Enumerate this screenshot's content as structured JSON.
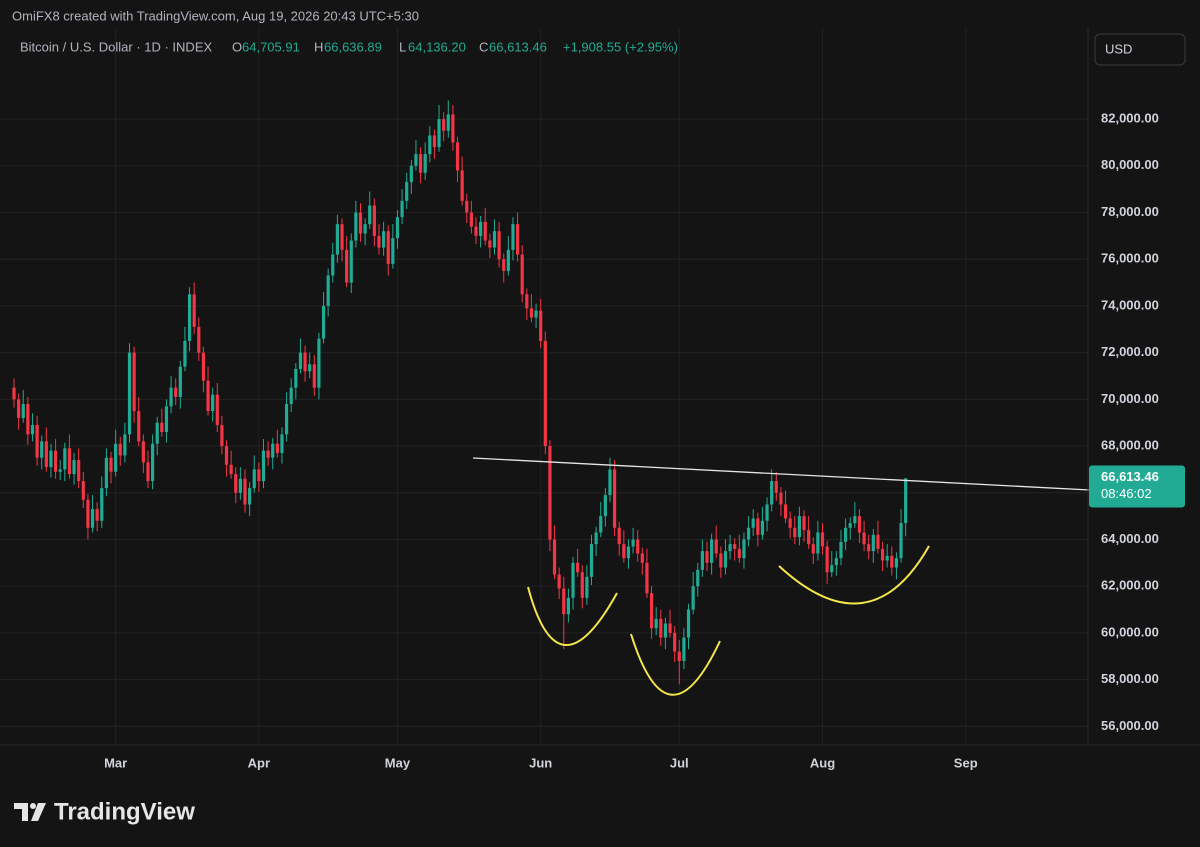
{
  "header": {
    "credit": "OmiFX8 created with TradingView.com, Aug 19, 2026 20:43 UTC+5:30",
    "symbol": "Bitcoin / U.S. Dollar · 1D · INDEX",
    "open_key": "O",
    "open_text": "64,705.91",
    "high_key": "H",
    "high_text": "66,636.89",
    "low_key": "L",
    "low_text": "64,136.20",
    "close_key": "C",
    "close_text": "66,613.46",
    "change_text": "+1,908.55 (+2.95%)",
    "currency": "USD"
  },
  "logo": "TradingView",
  "chart_data": {
    "type": "candlestick",
    "up_color": "#22ab94",
    "down_color": "#f23645",
    "grid": true,
    "last_price_label": "66,613.46",
    "countdown": "08:46:02",
    "ylim": [
      55200,
      85900
    ],
    "yticks": [
      {
        "value": 56000,
        "label": "56,000.00"
      },
      {
        "value": 58000,
        "label": "58,000.00"
      },
      {
        "value": 60000,
        "label": "60,000.00"
      },
      {
        "value": 62000,
        "label": "62,000.00"
      },
      {
        "value": 64000,
        "label": "64,000.00"
      },
      {
        "value": 66000,
        "label": "66,000.00"
      },
      {
        "value": 68000,
        "label": "68,000.00"
      },
      {
        "value": 70000,
        "label": "70,000.00"
      },
      {
        "value": 72000,
        "label": "72,000.00"
      },
      {
        "value": 74000,
        "label": "74,000.00"
      },
      {
        "value": 76000,
        "label": "76,000.00"
      },
      {
        "value": 78000,
        "label": "78,000.00"
      },
      {
        "value": 80000,
        "label": "80,000.00"
      },
      {
        "value": 82000,
        "label": "82,000.00"
      }
    ],
    "categories": [
      null,
      null,
      null,
      null,
      null,
      null,
      null,
      null,
      null,
      null,
      null,
      null,
      null,
      null,
      null,
      null,
      null,
      null,
      null,
      null,
      null,
      null,
      "Mar",
      null,
      null,
      null,
      null,
      null,
      null,
      null,
      null,
      null,
      null,
      null,
      null,
      null,
      null,
      null,
      null,
      null,
      null,
      null,
      null,
      null,
      null,
      null,
      null,
      null,
      null,
      null,
      null,
      null,
      null,
      "Apr",
      null,
      null,
      null,
      null,
      null,
      null,
      null,
      null,
      null,
      null,
      null,
      null,
      null,
      null,
      null,
      null,
      null,
      null,
      null,
      null,
      null,
      null,
      null,
      null,
      null,
      null,
      null,
      null,
      null,
      "May",
      null,
      null,
      null,
      null,
      null,
      null,
      null,
      null,
      null,
      null,
      null,
      null,
      null,
      null,
      null,
      null,
      null,
      null,
      null,
      null,
      null,
      null,
      null,
      null,
      null,
      null,
      null,
      null,
      null,
      null,
      "Jun",
      null,
      null,
      null,
      null,
      null,
      null,
      null,
      null,
      null,
      null,
      null,
      null,
      null,
      null,
      null,
      null,
      null,
      null,
      null,
      null,
      null,
      null,
      null,
      null,
      null,
      null,
      null,
      null,
      null,
      "Jul",
      null,
      null,
      null,
      null,
      null,
      null,
      null,
      null,
      null,
      null,
      null,
      null,
      null,
      null,
      null,
      null,
      null,
      null,
      null,
      null,
      null,
      null,
      null,
      null,
      null,
      null,
      null,
      null,
      null,
      null,
      "Aug",
      null,
      null,
      null,
      null,
      null,
      null,
      null,
      null,
      null,
      null,
      null,
      null,
      null,
      null,
      null,
      null,
      null,
      null,
      null,
      null,
      null,
      null,
      null,
      null,
      null,
      null,
      null,
      null,
      null,
      null,
      "Sep"
    ],
    "open": [
      70500,
      70000,
      69200,
      69800,
      68500,
      68900,
      67500,
      68200,
      67100,
      67800,
      66900,
      67000,
      67900,
      66800,
      67400,
      66500,
      65700,
      64500,
      65300,
      64800,
      66200,
      67500,
      66900,
      68100,
      67600,
      68500,
      72000,
      69500,
      68200,
      67300,
      66500,
      68100,
      69000,
      68600,
      69700,
      70500,
      70100,
      71400,
      72500,
      74500,
      73100,
      72000,
      70800,
      69500,
      70200,
      68900,
      68000,
      67200,
      66800,
      66000,
      66600,
      65500,
      66200,
      67000,
      66500,
      67800,
      67500,
      68100,
      67700,
      68500,
      69800,
      70500,
      71300,
      72000,
      71200,
      71500,
      70500,
      72600,
      74000,
      75300,
      76200,
      77500,
      76400,
      75000,
      76800,
      78000,
      77100,
      77500,
      78300,
      77000,
      76500,
      77200,
      75800,
      76900,
      77800,
      78500,
      79300,
      80000,
      80500,
      79700,
      80500,
      81300,
      80800,
      82000,
      81500,
      82200,
      81000,
      79800,
      78500,
      78000,
      77400,
      77000,
      77600,
      76800,
      76500,
      77200,
      76000,
      75500,
      76400,
      77500,
      76200,
      74500,
      73900,
      73500,
      73800,
      72500,
      68000,
      64000,
      62500,
      61900,
      60800,
      61500,
      63000,
      62600,
      61500,
      62400,
      63800,
      64300,
      65000,
      65900,
      67000,
      64500,
      63800,
      63200,
      63700,
      64000,
      63400,
      63000,
      61700,
      60200,
      60600,
      59800,
      60400,
      60000,
      59200,
      58800,
      59800,
      61000,
      62000,
      62700,
      63500,
      63000,
      64000,
      63400,
      62800,
      63500,
      63800,
      63600,
      63200,
      64000,
      64500,
      64900,
      64200,
      64800,
      65500,
      66500,
      66000,
      65500,
      64900,
      64500,
      64100,
      65000,
      64400,
      63800,
      63400,
      64300,
      63700,
      62600,
      62900,
      63200,
      63900,
      64500,
      64700,
      65000,
      64300,
      63800,
      63500,
      64200,
      63600,
      63100,
      63300,
      62800,
      63200,
      64705.91,
      null,
      null,
      null,
      null,
      null,
      null,
      null,
      null,
      null,
      null,
      null,
      null,
      null
    ],
    "high": [
      70900,
      70250,
      70400,
      70100,
      69400,
      69300,
      68450,
      68800,
      68100,
      68300,
      67400,
      68150,
      68500,
      67700,
      67900,
      66900,
      65950,
      65900,
      65600,
      66700,
      67900,
      67750,
      68700,
      68400,
      69000,
      72400,
      72250,
      70100,
      68500,
      67800,
      68500,
      69250,
      69600,
      70000,
      71000,
      70900,
      71650,
      73100,
      74800,
      75000,
      73500,
      72250,
      71400,
      70500,
      70700,
      69300,
      68250,
      67800,
      67100,
      67100,
      67000,
      66450,
      67600,
      67300,
      68300,
      68200,
      68350,
      68700,
      68800,
      70300,
      70900,
      71550,
      72600,
      72300,
      72000,
      71900,
      72850,
      74600,
      75600,
      76700,
      77900,
      77750,
      77000,
      77100,
      78500,
      78400,
      77750,
      78900,
      78600,
      77500,
      77600,
      77450,
      77500,
      78100,
      79000,
      79700,
      80250,
      81100,
      80800,
      81000,
      81700,
      81550,
      82600,
      82300,
      82800,
      82600,
      81250,
      80400,
      78800,
      78500,
      77800,
      77850,
      78200,
      77100,
      77700,
      77600,
      76250,
      77000,
      77800,
      78000,
      76600,
      74750,
      74500,
      74100,
      74300,
      72900,
      68250,
      64600,
      62800,
      62400,
      61900,
      63250,
      63600,
      62900,
      62900,
      64200,
      64550,
      65600,
      66200,
      67500,
      67400,
      64750,
      64400,
      64000,
      64500,
      64400,
      63650,
      63600,
      62000,
      61100,
      61000,
      60650,
      61000,
      60300,
      59700,
      60200,
      61250,
      62600,
      63000,
      64000,
      63900,
      64250,
      64600,
      63700,
      64000,
      64200,
      64050,
      64200,
      64300,
      65000,
      65300,
      65150,
      65400,
      65800,
      67000,
      66900,
      66250,
      66100,
      65200,
      65000,
      65400,
      65250,
      65000,
      64100,
      64800,
      64700,
      63950,
      63500,
      63500,
      64400,
      64900,
      64950,
      65600,
      65300,
      64800,
      64200,
      64450,
      64800,
      63900,
      63800,
      63700,
      63450,
      65300,
      66636.89,
      null,
      null,
      null,
      null,
      null,
      null,
      null,
      null,
      null,
      null,
      null,
      null,
      null
    ],
    "low": [
      69650,
      68700,
      69000,
      68050,
      68200,
      67150,
      67000,
      66900,
      66650,
      66600,
      66550,
      66500,
      66600,
      66350,
      66200,
      65350,
      64000,
      64300,
      64350,
      64500,
      65850,
      66400,
      66700,
      67150,
      67300,
      68150,
      69000,
      68000,
      66850,
      66200,
      66150,
      67600,
      68400,
      68150,
      69400,
      69750,
      69600,
      71200,
      72050,
      72800,
      71650,
      70300,
      69300,
      69050,
      68600,
      67650,
      66700,
      66600,
      65550,
      65700,
      65150,
      65000,
      66000,
      66050,
      66200,
      67150,
      67000,
      67500,
      67250,
      68200,
      69450,
      70000,
      71100,
      70750,
      70900,
      70150,
      70000,
      72400,
      73550,
      75000,
      75850,
      75900,
      74800,
      74550,
      76500,
      76750,
      76600,
      77300,
      76550,
      76200,
      76150,
      75300,
      75600,
      76450,
      77500,
      78150,
      78800,
      79800,
      79250,
      79400,
      80150,
      80300,
      80600,
      81050,
      81200,
      80650,
      79300,
      78300,
      77550,
      77100,
      76650,
      76500,
      76600,
      76050,
      76200,
      75650,
      75000,
      75300,
      75950,
      75900,
      74150,
      73400,
      73300,
      73050,
      72200,
      67650,
      63500,
      62300,
      61450,
      59300,
      60450,
      61000,
      62400,
      61050,
      61200,
      62050,
      63300,
      64100,
      64550,
      65600,
      64150,
      63300,
      63000,
      62750,
      63400,
      63050,
      62500,
      61500,
      59750,
      59900,
      59450,
      59300,
      59800,
      58750,
      57800,
      58450,
      59300,
      60800,
      61550,
      62400,
      62650,
      62500,
      63200,
      62350,
      62500,
      63150,
      63100,
      63000,
      62750,
      63700,
      64150,
      63700,
      64000,
      64350,
      65200,
      65650,
      65000,
      64700,
      64050,
      63800,
      63750,
      63900,
      63600,
      62950,
      63100,
      63350,
      62100,
      62400,
      62450,
      62900,
      63550,
      64000,
      64500,
      63850,
      63500,
      63150,
      63000,
      63400,
      62650,
      62800,
      62450,
      62300,
      63000,
      64136.2,
      null,
      null,
      null,
      null,
      null,
      null,
      null,
      null,
      null,
      null,
      null,
      null,
      null
    ],
    "close": [
      70000,
      69200,
      69800,
      68500,
      68900,
      67500,
      68200,
      67100,
      67800,
      66900,
      67000,
      67900,
      66800,
      67400,
      66500,
      65700,
      64500,
      65300,
      64800,
      66200,
      67500,
      66900,
      68100,
      67600,
      68500,
      72000,
      69500,
      68200,
      67300,
      66500,
      68100,
      69000,
      68600,
      69700,
      70500,
      70100,
      71400,
      72500,
      74500,
      73100,
      72000,
      70800,
      69500,
      70200,
      68900,
      68000,
      67200,
      66800,
      66000,
      66600,
      65500,
      66200,
      67000,
      66500,
      67800,
      67500,
      68100,
      67700,
      68500,
      69800,
      70500,
      71300,
      72000,
      71200,
      71500,
      70500,
      72600,
      74000,
      75300,
      76200,
      77500,
      76400,
      75000,
      76800,
      78000,
      77100,
      77500,
      78300,
      77000,
      76500,
      77200,
      75800,
      76900,
      77800,
      78500,
      79300,
      80000,
      80500,
      79700,
      80500,
      81300,
      80800,
      82000,
      81500,
      82200,
      81000,
      79800,
      78500,
      78000,
      77400,
      77000,
      77600,
      76800,
      76500,
      77200,
      76000,
      75500,
      76400,
      77500,
      76200,
      74500,
      73900,
      73500,
      73800,
      72500,
      68000,
      64000,
      62500,
      61900,
      60800,
      61500,
      63000,
      62600,
      61500,
      62400,
      63800,
      64300,
      65000,
      65900,
      67000,
      64500,
      63800,
      63200,
      63700,
      64000,
      63400,
      63000,
      61700,
      60200,
      60600,
      59800,
      60400,
      60000,
      59200,
      58800,
      59800,
      61000,
      62000,
      62700,
      63500,
      63000,
      64000,
      63400,
      62800,
      63500,
      63800,
      63600,
      63200,
      64000,
      64500,
      64900,
      64200,
      64800,
      65500,
      66500,
      66000,
      65500,
      64900,
      64500,
      64100,
      65000,
      64400,
      63800,
      63400,
      64300,
      63700,
      62600,
      62900,
      63200,
      63900,
      64500,
      64700,
      65000,
      64300,
      63800,
      63500,
      64200,
      63600,
      63100,
      63300,
      62800,
      63200,
      64704.91,
      66613.46,
      null,
      null,
      null,
      null,
      null,
      null,
      null,
      null,
      null,
      null,
      null,
      null,
      null
    ]
  }
}
